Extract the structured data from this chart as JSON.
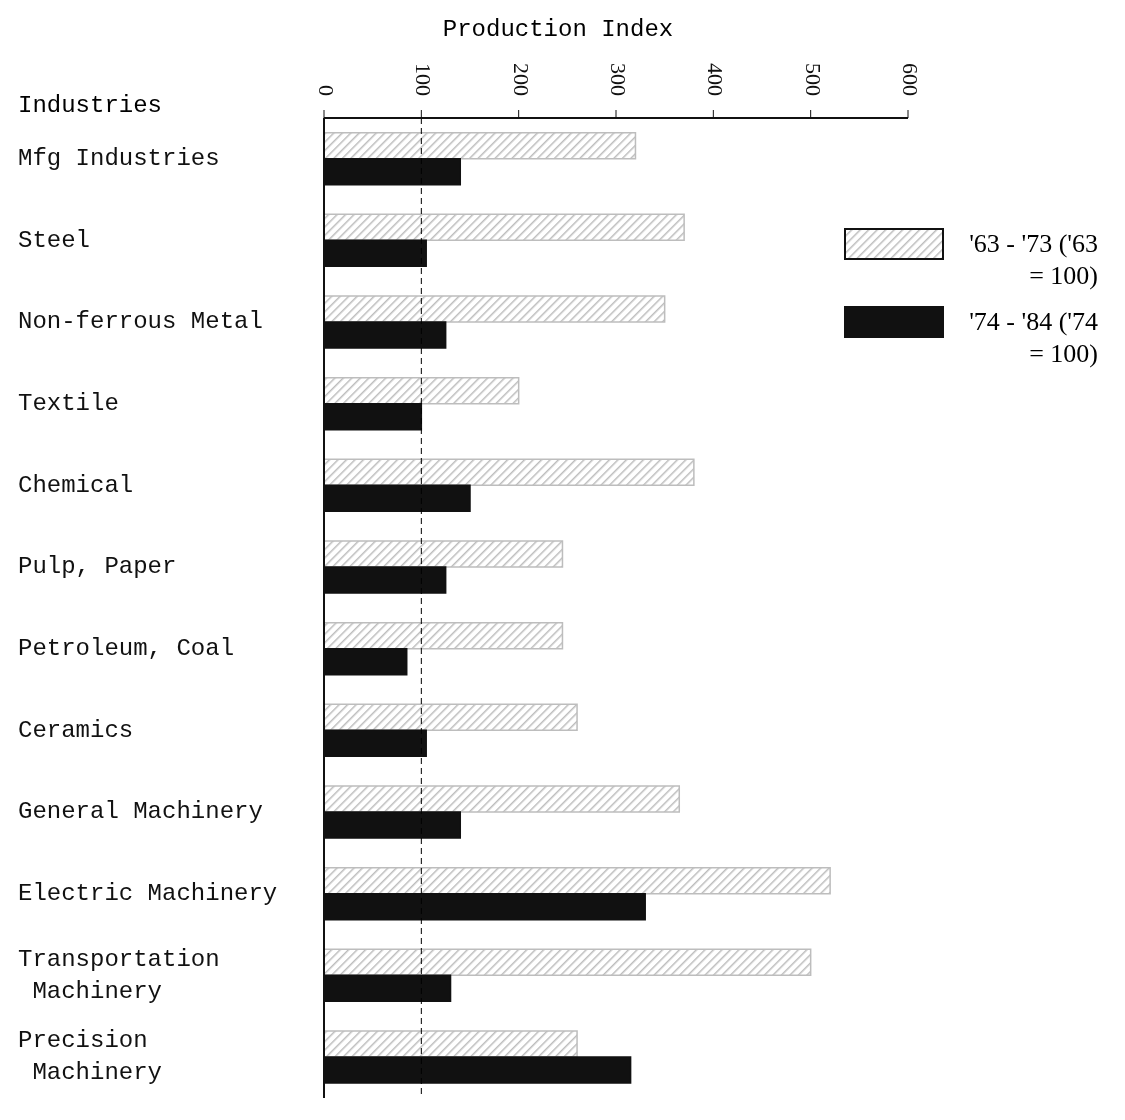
{
  "chart_data": {
    "type": "bar",
    "orientation": "horizontal",
    "xlabel": "Production Index",
    "ylabel": "Industries",
    "categories": [
      "Mfg Industries",
      "Steel",
      "Non-ferrous Metal",
      "Textile",
      "Chemical",
      "Pulp, Paper",
      "Petroleum, Coal",
      "Ceramics",
      "General Machinery",
      "Electric Machinery",
      "Transportation Machinery",
      "Precision Machinery"
    ],
    "series": [
      {
        "name": "'63 - '73 ('63 = 100)",
        "color": "#bdbdbd",
        "values": [
          320,
          370,
          350,
          200,
          380,
          245,
          245,
          260,
          365,
          520,
          500,
          260
        ]
      },
      {
        "name": "'74 - '84 ('74 = 100)",
        "color": "#111111",
        "values": [
          140,
          105,
          125,
          100,
          150,
          125,
          85,
          105,
          140,
          330,
          130,
          315
        ]
      }
    ],
    "xlim": [
      0,
      600
    ],
    "xticks": [
      0,
      100,
      200,
      300,
      400,
      500,
      600
    ],
    "ref_lines": [
      {
        "axis": "x",
        "value": 100,
        "line_style": "dashed",
        "color": "#000000"
      }
    ],
    "legend": "top right"
  }
}
